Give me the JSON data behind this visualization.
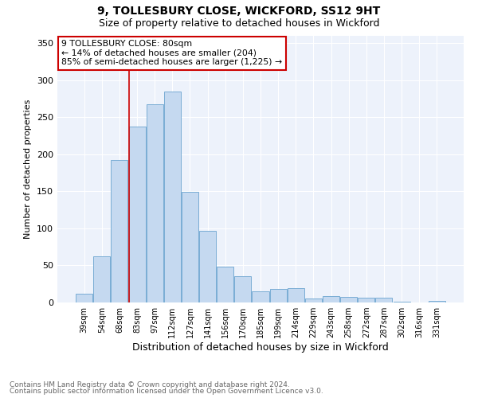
{
  "title1": "9, TOLLESBURY CLOSE, WICKFORD, SS12 9HT",
  "title2": "Size of property relative to detached houses in Wickford",
  "xlabel": "Distribution of detached houses by size in Wickford",
  "ylabel": "Number of detached properties",
  "categories": [
    "39sqm",
    "54sqm",
    "68sqm",
    "83sqm",
    "97sqm",
    "112sqm",
    "127sqm",
    "141sqm",
    "156sqm",
    "170sqm",
    "185sqm",
    "199sqm",
    "214sqm",
    "229sqm",
    "243sqm",
    "258sqm",
    "272sqm",
    "287sqm",
    "302sqm",
    "316sqm",
    "331sqm"
  ],
  "values": [
    12,
    62,
    192,
    238,
    268,
    285,
    149,
    97,
    48,
    35,
    15,
    18,
    19,
    5,
    9,
    8,
    6,
    6,
    1,
    0,
    2
  ],
  "bar_color": "#c5d9f0",
  "bar_edge_color": "#7aadd4",
  "vline_color": "#cc0000",
  "annotation_line1": "9 TOLLESBURY CLOSE: 80sqm",
  "annotation_line2": "← 14% of detached houses are smaller (204)",
  "annotation_line3": "85% of semi-detached houses are larger (1,225) →",
  "annotation_box_edgecolor": "#cc0000",
  "footnote1": "Contains HM Land Registry data © Crown copyright and database right 2024.",
  "footnote2": "Contains public sector information licensed under the Open Government Licence v3.0.",
  "bg_color": "#edf2fb",
  "ylim": [
    0,
    360
  ],
  "yticks": [
    0,
    50,
    100,
    150,
    200,
    250,
    300,
    350
  ]
}
